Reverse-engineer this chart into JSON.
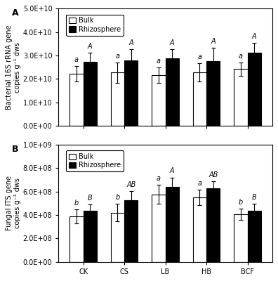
{
  "categories": [
    "CK",
    "CS",
    "LB",
    "HB",
    "BCF"
  ],
  "panel_A": {
    "ylabel": "Bacterial 16S rRNA gene\ncopies g⁻¹ dws",
    "ylim": [
      0,
      50000000000.0
    ],
    "yticks": [
      0,
      10000000000.0,
      20000000000.0,
      30000000000.0,
      40000000000.0,
      50000000000.0
    ],
    "ytick_labels": [
      "0.0E+00",
      "1.0E+10",
      "2.0E+10",
      "3.0E+10",
      "4.0E+10",
      "5.0E+10"
    ],
    "bulk_values": [
      22200000000.0,
      22700000000.0,
      21700000000.0,
      22800000000.0,
      24200000000.0
    ],
    "rhizo_values": [
      27300000000.0,
      27800000000.0,
      28800000000.0,
      27500000000.0,
      31200000000.0
    ],
    "bulk_errors": [
      3300000000.0,
      4300000000.0,
      3300000000.0,
      3800000000.0,
      2800000000.0
    ],
    "rhizo_errors": [
      3800000000.0,
      4800000000.0,
      4000000000.0,
      5800000000.0,
      4200000000.0
    ],
    "bulk_letters": [
      "a",
      "a",
      "a",
      "a",
      "a"
    ],
    "rhizo_letters": [
      "A",
      "A",
      "A",
      "A",
      "A"
    ],
    "panel_label": "A"
  },
  "panel_B": {
    "ylabel": "Fungal ITS gene\ncopies g⁻¹ dws",
    "ylim": [
      0,
      1000000000.0
    ],
    "yticks": [
      0,
      200000000.0,
      400000000.0,
      600000000.0,
      800000000.0,
      1000000000.0
    ],
    "ytick_labels": [
      "0.0E+00",
      "2.0E+08",
      "4.0E+08",
      "6.0E+08",
      "8.0E+08",
      "1.0E+09"
    ],
    "bulk_values": [
      385000000.0,
      420000000.0,
      575000000.0,
      550000000.0,
      405000000.0
    ],
    "rhizo_values": [
      435000000.0,
      525000000.0,
      640000000.0,
      625000000.0,
      435000000.0
    ],
    "bulk_errors": [
      60000000.0,
      75000000.0,
      80000000.0,
      65000000.0,
      48000000.0
    ],
    "rhizo_errors": [
      55000000.0,
      80000000.0,
      80000000.0,
      60000000.0,
      60000000.0
    ],
    "bulk_letters": [
      "b",
      "b",
      "a",
      "a",
      "b"
    ],
    "rhizo_letters": [
      "B",
      "AB",
      "A",
      "AB",
      "B"
    ],
    "panel_label": "B"
  },
  "bar_width": 0.33,
  "bulk_color": "white",
  "rhizo_color": "black",
  "edge_color": "black",
  "legend_labels": [
    "Bulk",
    "Rhizosphere"
  ],
  "font_size": 7.0
}
